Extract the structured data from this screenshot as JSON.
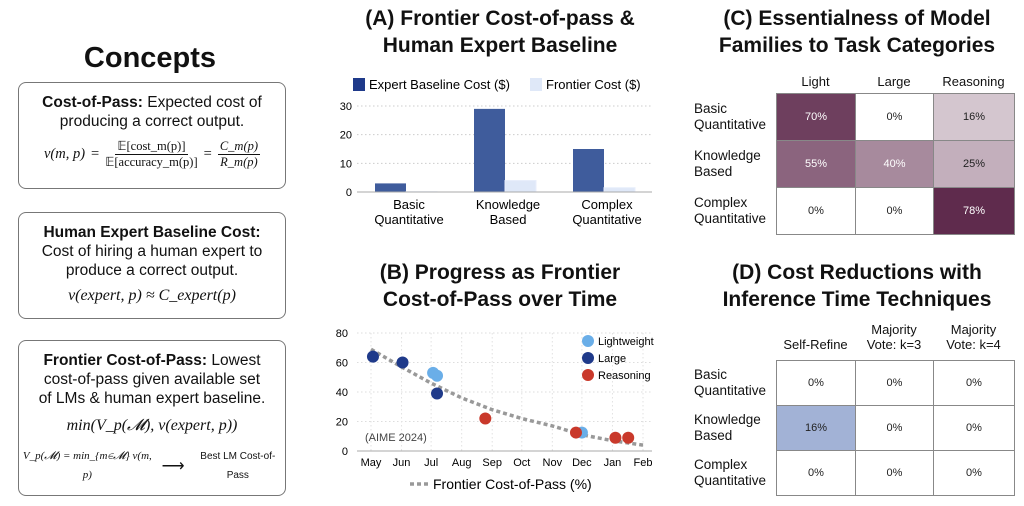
{
  "concepts": {
    "title": "Concepts",
    "cost_of_pass": {
      "term": "Cost-of-Pass:",
      "desc_a": " Expected cost of",
      "desc_b": "producing a correct output.",
      "lhs": "v(m, p)",
      "eq": "=",
      "num1": "𝔼[cost_m(p)]",
      "den1": "𝔼[accuracy_m(p)]",
      "num2": "C_m(p)",
      "den2": "R_m(p)"
    },
    "expert_baseline": {
      "term": "Human Expert Baseline Cost:",
      "desc_a": "Cost of hiring a human expert to",
      "desc_b": "produce a correct output.",
      "formula": "v(expert, p) ≈ C_expert(p)"
    },
    "frontier": {
      "term": "Frontier Cost-of-Pass:",
      "desc_a": " Lowest",
      "desc_b": "cost-of-pass given available set",
      "desc_c": "of LMs & human expert baseline.",
      "formula": "min(V_p(𝓜),  v(expert, p))",
      "def": "V_p(𝓜) = min_{m∈𝓜} v(m, p)",
      "arrow": "⟶",
      "def_label": "Best LM Cost-of-Pass"
    }
  },
  "chart_data": [
    {
      "id": "A",
      "type": "bar",
      "title_lines": [
        "(A) Frontier Cost-of-pass &",
        "Human Expert Baseline"
      ],
      "categories": [
        [
          "Basic",
          "Quantitative"
        ],
        [
          "Knowledge",
          "Based"
        ],
        [
          "Complex",
          "Quantitative"
        ]
      ],
      "series": [
        {
          "name": "Expert Baseline Cost ($)",
          "color": "#3f5c9c",
          "legend_color": "#1f3a8a",
          "values": [
            3,
            29,
            15
          ]
        },
        {
          "name": "Frontier Cost ($)",
          "color": "#dfe8f8",
          "legend_color": "#dfe8f8",
          "values": [
            0.1,
            4,
            1.5
          ]
        }
      ],
      "ylim": [
        0,
        30
      ],
      "yticks": [
        0,
        10,
        20,
        30
      ],
      "grid": true,
      "legend": "top"
    },
    {
      "id": "B",
      "type": "scatter",
      "title_lines": [
        "(B) Progress as Frontier",
        "Cost-of-Pass over Time"
      ],
      "xticks": [
        "2024-05-01",
        "2024-06-01",
        "2024-07-01",
        "2024-08-01",
        "2024-09-01",
        "2024-10-01",
        "2024-11-01",
        "2024-12-01",
        "2025-01-01",
        "2025-02-01"
      ],
      "xtick_labels": [
        "May",
        "Jun",
        "Jul",
        "Aug",
        "Sep",
        "Oct",
        "Nov",
        "Dec",
        "Jan",
        "Feb"
      ],
      "ylim": [
        0,
        80
      ],
      "yticks": [
        0,
        20,
        40,
        60,
        80
      ],
      "grid": true,
      "legend": "top-right",
      "annotation": "(AIME 2024)",
      "series": [
        {
          "name": "Lightweight",
          "color": "#6aaee8",
          "points": [
            [
              "2024-07-03",
              53
            ],
            [
              "2024-07-07",
              51
            ],
            [
              "2024-12-01",
              12.5
            ]
          ]
        },
        {
          "name": "Large",
          "color": "#1f3a8a",
          "points": [
            [
              "2024-05-03",
              64
            ],
            [
              "2024-06-02",
              60
            ],
            [
              "2024-07-07",
              39
            ]
          ]
        },
        {
          "name": "Reasoning",
          "color": "#c9392b",
          "points": [
            [
              "2024-08-25",
              22
            ],
            [
              "2024-11-25",
              12.5
            ],
            [
              "2025-01-04",
              9
            ],
            [
              "2025-01-17",
              9
            ]
          ]
        }
      ],
      "trend": {
        "name": "Frontier Cost-of-Pass (%)",
        "color": "#999999",
        "points": [
          [
            "2024-05-01",
            69
          ],
          [
            "2024-06-01",
            57
          ],
          [
            "2024-07-01",
            46
          ],
          [
            "2024-08-01",
            36
          ],
          [
            "2024-09-01",
            28
          ],
          [
            "2024-10-01",
            22
          ],
          [
            "2024-11-01",
            17
          ],
          [
            "2024-12-01",
            11
          ],
          [
            "2025-01-01",
            7
          ],
          [
            "2025-02-01",
            4
          ]
        ]
      }
    },
    {
      "id": "C",
      "type": "heatmap",
      "title_lines": [
        "(C) Essentialness of Model",
        "Families to Task Categories"
      ],
      "columns": [
        [
          "Light"
        ],
        [
          "Large"
        ],
        [
          "Reasoning"
        ]
      ],
      "rows": [
        [
          "Basic",
          "Quantitative"
        ],
        [
          "Knowledge",
          "Based"
        ],
        [
          "Complex",
          "Quantitative"
        ]
      ],
      "values": [
        [
          70,
          0,
          16
        ],
        [
          55,
          40,
          25
        ],
        [
          0,
          0,
          78
        ]
      ],
      "labels": [
        [
          "70%",
          "0%",
          "16%"
        ],
        [
          "55%",
          "40%",
          "25%"
        ],
        [
          "0%",
          "0%",
          "78%"
        ]
      ],
      "color": "#5f2a4d"
    },
    {
      "id": "D",
      "type": "heatmap",
      "title_lines": [
        "(D) Cost Reductions with",
        "Inference Time Techniques"
      ],
      "columns": [
        [
          "Self-Refine"
        ],
        [
          "Majority",
          "Vote: k=3"
        ],
        [
          "Majority",
          "Vote: k=4"
        ]
      ],
      "rows": [
        [
          "Basic",
          "Quantitative"
        ],
        [
          "Knowledge",
          "Based"
        ],
        [
          "Complex",
          "Quantitative"
        ]
      ],
      "values": [
        [
          0,
          0,
          0
        ],
        [
          16,
          0,
          0
        ],
        [
          0,
          0,
          0
        ]
      ],
      "labels": [
        [
          "0%",
          "0%",
          "0%"
        ],
        [
          "16%",
          "0%",
          "0%"
        ],
        [
          "0%",
          "0%",
          "0%"
        ]
      ],
      "color": "#a2b2d6"
    }
  ]
}
